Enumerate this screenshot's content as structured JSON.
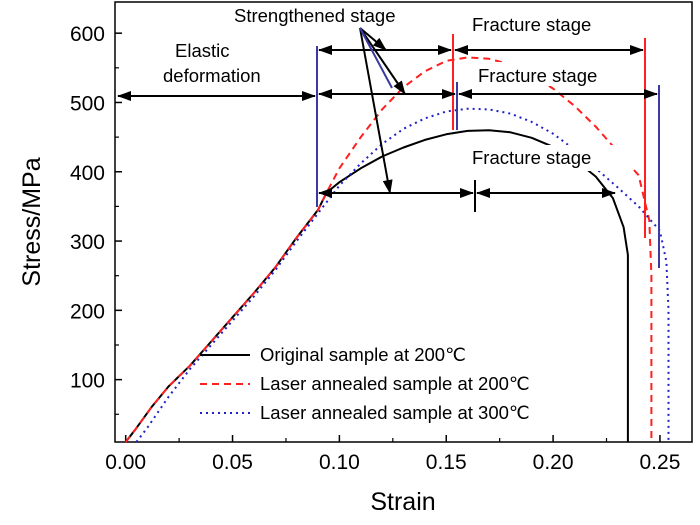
{
  "chart_data": {
    "type": "line",
    "xlabel": "Strain",
    "ylabel": "Stress/MPa",
    "xlim": [
      -0.005,
      0.265
    ],
    "ylim": [
      10,
      645
    ],
    "xticks": [
      0.0,
      0.05,
      0.1,
      0.15,
      0.2,
      0.25
    ],
    "xtick_labels": [
      "0.00",
      "0.05",
      "0.10",
      "0.15",
      "0.20",
      "0.25"
    ],
    "yticks": [
      100,
      200,
      300,
      400,
      500,
      600
    ],
    "ytick_labels": [
      "100",
      "200",
      "300",
      "400",
      "500",
      "600"
    ],
    "grid": false,
    "legend_position": "bottom-center",
    "series": [
      {
        "name": "Original sample at 200℃",
        "color": "#000000",
        "style": "solid",
        "points": [
          [
            0.0,
            10
          ],
          [
            0.005,
            30
          ],
          [
            0.012,
            60
          ],
          [
            0.02,
            90
          ],
          [
            0.03,
            120
          ],
          [
            0.04,
            155
          ],
          [
            0.05,
            190
          ],
          [
            0.06,
            225
          ],
          [
            0.07,
            262
          ],
          [
            0.08,
            305
          ],
          [
            0.09,
            345
          ],
          [
            0.094,
            370
          ],
          [
            0.1,
            385
          ],
          [
            0.11,
            405
          ],
          [
            0.12,
            422
          ],
          [
            0.13,
            435
          ],
          [
            0.14,
            446
          ],
          [
            0.15,
            454
          ],
          [
            0.16,
            459
          ],
          [
            0.17,
            460
          ],
          [
            0.18,
            457
          ],
          [
            0.19,
            449
          ],
          [
            0.2,
            436
          ],
          [
            0.21,
            418
          ],
          [
            0.22,
            393
          ],
          [
            0.228,
            362
          ],
          [
            0.233,
            320
          ],
          [
            0.235,
            280
          ],
          [
            0.235,
            10
          ]
        ]
      },
      {
        "name": "Laser annealed sample at 200℃",
        "color": "#ff2020",
        "style": "dashed",
        "points": [
          [
            0.0,
            10
          ],
          [
            0.005,
            30
          ],
          [
            0.012,
            60
          ],
          [
            0.02,
            90
          ],
          [
            0.03,
            120
          ],
          [
            0.04,
            155
          ],
          [
            0.05,
            190
          ],
          [
            0.06,
            225
          ],
          [
            0.07,
            262
          ],
          [
            0.08,
            305
          ],
          [
            0.09,
            345
          ],
          [
            0.094,
            370
          ],
          [
            0.1,
            405
          ],
          [
            0.11,
            450
          ],
          [
            0.12,
            490
          ],
          [
            0.13,
            522
          ],
          [
            0.14,
            545
          ],
          [
            0.15,
            560
          ],
          [
            0.16,
            565
          ],
          [
            0.17,
            563
          ],
          [
            0.18,
            555
          ],
          [
            0.19,
            540
          ],
          [
            0.2,
            520
          ],
          [
            0.21,
            495
          ],
          [
            0.22,
            465
          ],
          [
            0.23,
            430
          ],
          [
            0.24,
            395
          ],
          [
            0.245,
            330
          ],
          [
            0.246,
            250
          ],
          [
            0.246,
            10
          ]
        ]
      },
      {
        "name": "Laser annealed sample at 300℃",
        "color": "#2020c8",
        "style": "dotted",
        "points": [
          [
            0.005,
            10
          ],
          [
            0.01,
            30
          ],
          [
            0.02,
            75
          ],
          [
            0.03,
            115
          ],
          [
            0.04,
            150
          ],
          [
            0.05,
            185
          ],
          [
            0.06,
            220
          ],
          [
            0.07,
            258
          ],
          [
            0.08,
            300
          ],
          [
            0.09,
            340
          ],
          [
            0.1,
            380
          ],
          [
            0.11,
            412
          ],
          [
            0.12,
            440
          ],
          [
            0.13,
            462
          ],
          [
            0.14,
            477
          ],
          [
            0.15,
            487
          ],
          [
            0.16,
            491
          ],
          [
            0.17,
            490
          ],
          [
            0.18,
            484
          ],
          [
            0.19,
            472
          ],
          [
            0.2,
            455
          ],
          [
            0.21,
            432
          ],
          [
            0.22,
            405
          ],
          [
            0.23,
            378
          ],
          [
            0.24,
            350
          ],
          [
            0.25,
            315
          ],
          [
            0.253,
            270
          ],
          [
            0.254,
            200
          ],
          [
            0.254,
            10
          ]
        ]
      }
    ],
    "annotations": {
      "elastic_line1": "Elastic",
      "elastic_line2": "deformation",
      "strengthened": "Strengthened stage",
      "fracture_top": "Fracture stage",
      "fracture_mid": "Fracture stage",
      "fracture_low": "Fracture stage"
    }
  }
}
